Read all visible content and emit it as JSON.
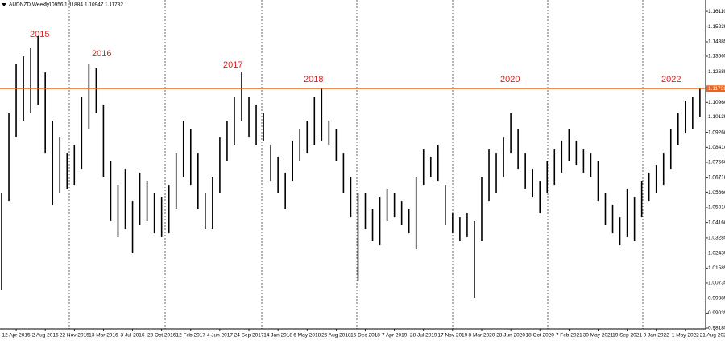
{
  "chart_data": {
    "type": "range",
    "title": "AUDNZD,Weekly",
    "header_values": [
      1.10956,
      1.11884,
      1.10947,
      1.11732
    ],
    "annotations": [
      "2015",
      "2016",
      "2017",
      "2018",
      "2020",
      "2022"
    ],
    "categories": [
      "12 Apr 2015",
      "2 Aug 2015",
      "22 Nov 2015",
      "13 Mar 2016",
      "3 Jul 2016",
      "23 Oct 2016",
      "12 Feb 2017",
      "4 Jun 2017",
      "24 Sep 2017",
      "14 Jan 2018",
      "6 May 2018",
      "26 Aug 2018",
      "16 Dec 2018",
      "7 Apr 2019",
      "28 Jul 2019",
      "17 Nov 2019",
      "8 Mar 2020",
      "28 Jun 2020",
      "18 Oct 2020",
      "7 Feb 2021",
      "30 May 2021",
      "19 Sep 2021",
      "9 Jan 2022",
      "1 May 2022",
      "21 Aug 2022"
    ],
    "highs": [
      1.0583,
      1.1038,
      1.1311,
      1.1356,
      1.1402,
      1.147,
      1.1265,
      1.0992,
      1.0901,
      1.081,
      1.0856,
      1.1129,
      1.1311,
      1.1288,
      1.1083,
      1.0765,
      1.0628,
      1.0719,
      1.0537,
      1.0697,
      1.0651,
      1.0583,
      1.056,
      1.0628,
      1.081,
      1.0992,
      1.0947,
      1.081,
      1.0583,
      1.0674,
      1.0901,
      1.0992,
      1.1129,
      1.1265,
      1.1129,
      1.1083,
      1.1038,
      1.0856,
      1.0788,
      1.0697,
      1.0879,
      1.0947,
      1.0992,
      1.1129,
      1.1174,
      1.0992,
      1.0947,
      1.081,
      1.0674,
      1.0583,
      1.0583,
      1.0492,
      1.056,
      1.0606,
      1.0583,
      1.0537,
      1.0492,
      1.0674,
      1.0833,
      1.0788,
      1.0856,
      1.0628,
      1.0469,
      1.0446,
      1.0469,
      1.0424,
      1.0674,
      1.0833,
      1.081,
      1.0901,
      1.1038,
      1.0947,
      1.081,
      1.0719,
      1.0651,
      1.0765,
      1.0833,
      1.0879,
      1.0947,
      1.0879,
      1.0833,
      1.081,
      1.0765,
      1.0583,
      1.0515,
      1.0446,
      1.0606,
      1.056,
      1.0651,
      1.0697,
      1.0742,
      1.081,
      1.0947,
      1.1038,
      1.1106,
      1.1129,
      1.1174
    ],
    "lows": [
      1.0037,
      1.0537,
      1.0901,
      1.0992,
      1.1038,
      1.1083,
      1.081,
      1.0515,
      1.0583,
      1.0606,
      1.0628,
      1.0719,
      1.0947,
      1.1038,
      1.0674,
      1.0424,
      1.0333,
      1.0378,
      1.0242,
      1.0401,
      1.0424,
      1.0355,
      1.0333,
      1.0355,
      1.0492,
      1.0674,
      1.0628,
      1.0492,
      1.0378,
      1.0378,
      1.0583,
      1.0765,
      1.0856,
      1.0992,
      1.0901,
      1.0856,
      1.0879,
      1.0651,
      1.0583,
      1.0492,
      1.0651,
      1.0765,
      1.081,
      1.0856,
      1.0879,
      1.0856,
      1.0765,
      1.0583,
      1.0446,
      1.0082,
      1.0378,
      1.031,
      1.0287,
      1.0424,
      1.0446,
      1.0401,
      1.0355,
      1.0264,
      1.0628,
      1.0674,
      1.0651,
      1.0401,
      1.0355,
      1.031,
      1.0333,
      0.9991,
      1.031,
      1.0537,
      1.0583,
      1.0674,
      1.081,
      1.0719,
      1.0606,
      1.056,
      1.0469,
      1.0583,
      1.0628,
      1.0697,
      1.0765,
      1.0742,
      1.0697,
      1.0674,
      1.0537,
      1.0401,
      1.0355,
      1.0287,
      1.0333,
      1.031,
      1.0446,
      1.0537,
      1.0583,
      1.0628,
      1.0719,
      1.0856,
      1.0924,
      1.0947,
      1.1015
    ],
    "color": "#000000",
    "price_line": 1.11732,
    "price_line_color": "#e8661f",
    "ylim": [
      0.9814,
      1.1675
    ],
    "yticks": [
      {
        "value": 1.1611,
        "label": "1.16110"
      },
      1.15235,
      1.14385,
      1.13565,
      1.12685,
      {
        "value": 1.1096,
        "label": "1.10960"
      },
      1.10135,
      {
        "value": 1.0926,
        "label": "1.09260"
      },
      {
        "value": 1.0841,
        "label": "1.08410"
      },
      {
        "value": 1.0756,
        "label": "1.07560"
      },
      {
        "value": 1.0671,
        "label": "1.06710"
      },
      {
        "value": 1.0586,
        "label": "1.05860"
      },
      {
        "value": 1.0501,
        "label": "1.05010"
      },
      {
        "value": 1.0416,
        "label": "1.04160"
      },
      1.03285,
      1.02435,
      1.01585,
      1.00735,
      0.99885,
      0.99035,
      0.98185
    ]
  }
}
